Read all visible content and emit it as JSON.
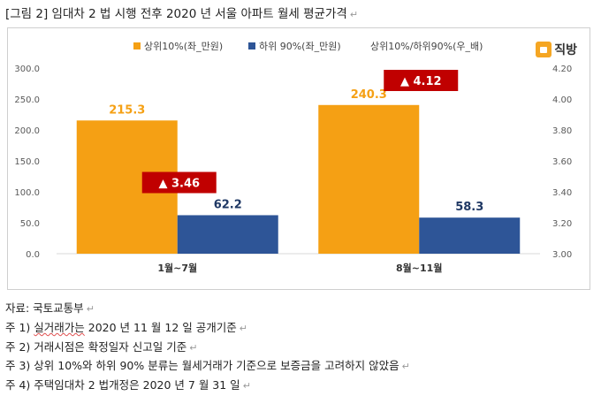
{
  "title": "[그림 2] 임대차 2 법 시행 전후 2020 년 서울 아파트 월세 평균가격",
  "logo_text": "직방",
  "chart_data": {
    "type": "bar",
    "categories": [
      "1월~7월",
      "8월~11월"
    ],
    "series": [
      {
        "name": "상위10%(좌_만원)",
        "color": "#F5A014",
        "values": [
          215.3,
          240.3
        ],
        "labels": [
          "215.3",
          "240.3"
        ]
      },
      {
        "name": "하위 90%(좌_만원)",
        "color": "#2E5597",
        "values": [
          62.2,
          58.3
        ],
        "labels": [
          "62.2",
          "58.3"
        ]
      }
    ],
    "ratio_series": {
      "name": "상위10%/하위90%(우_배)",
      "values": [
        3.46,
        4.12
      ],
      "labels": [
        "▲ 3.46",
        "▲ 4.12"
      ],
      "color": "#C00000"
    },
    "y_left": {
      "min": 0,
      "max": 300,
      "ticks": [
        "0.0",
        "50.0",
        "100.0",
        "150.0",
        "200.0",
        "250.0",
        "300.0"
      ]
    },
    "y_right": {
      "min": 3.0,
      "max": 4.2,
      "ticks": [
        "3.00",
        "3.20",
        "3.40",
        "3.60",
        "3.80",
        "4.00",
        "4.20"
      ]
    },
    "grid": false,
    "legend": "top"
  },
  "notes": {
    "source": "자료: 국토교통부",
    "n1_prefix": "주 1) ",
    "n1_underlined": "실거래가는",
    "n1_rest": " 2020 년 11 월 12 일 공개기준",
    "n2": "주 2) 거래시점은 확정일자 신고일 기준",
    "n3": "주 3) 상위 10%와 하위 90% 분류는 월세거래가 기준으로 보증금을 고려하지 않았음",
    "n4": "주 4) 주택임대차 2 법개정은 2020 년 7 월 31 일"
  }
}
